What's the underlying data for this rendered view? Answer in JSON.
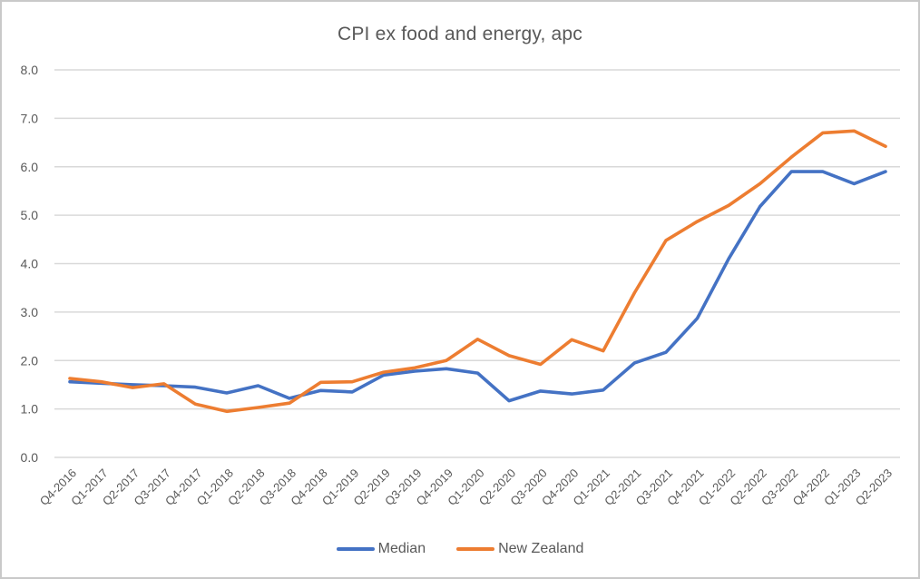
{
  "chart_data": {
    "type": "line",
    "title": "CPI ex food and energy, apc",
    "categories": [
      "Q4-2016",
      "Q1-2017",
      "Q2-2017",
      "Q3-2017",
      "Q4-2017",
      "Q1-2018",
      "Q2-2018",
      "Q3-2018",
      "Q4-2018",
      "Q1-2019",
      "Q2-2019",
      "Q3-2019",
      "Q4-2019",
      "Q1-2020",
      "Q2-2020",
      "Q3-2020",
      "Q4-2020",
      "Q1-2021",
      "Q2-2021",
      "Q3-2021",
      "Q4-2021",
      "Q1-2022",
      "Q2-2022",
      "Q3-2022",
      "Q4-2022",
      "Q1-2023",
      "Q2-2023"
    ],
    "series": [
      {
        "name": "Median",
        "color": "#4472C4",
        "values": [
          1.56,
          1.53,
          1.5,
          1.48,
          1.45,
          1.33,
          1.48,
          1.22,
          1.38,
          1.35,
          1.7,
          1.78,
          1.83,
          1.74,
          1.17,
          1.37,
          1.31,
          1.39,
          1.95,
          2.17,
          2.87,
          4.1,
          5.18,
          5.9,
          5.9,
          5.65,
          5.9
        ]
      },
      {
        "name": "New Zealand",
        "color": "#ED7D31",
        "values": [
          1.63,
          1.56,
          1.44,
          1.52,
          1.1,
          0.95,
          1.03,
          1.12,
          1.55,
          1.56,
          1.76,
          1.85,
          2.0,
          2.44,
          2.1,
          1.92,
          2.43,
          2.2,
          3.4,
          4.48,
          4.87,
          5.2,
          5.65,
          6.2,
          6.7,
          6.74,
          6.42
        ]
      }
    ],
    "xlabel": "",
    "ylabel": "",
    "ylim": [
      0.0,
      8.0
    ],
    "ytick_step": 1.0,
    "ytick_labels": [
      "0.0",
      "1.0",
      "2.0",
      "3.0",
      "4.0",
      "5.0",
      "6.0",
      "7.0",
      "8.0"
    ],
    "grid": "horizontal",
    "x_label_rotation": -45,
    "legend_position": "bottom"
  },
  "colors": {
    "grid_line": "#D9D9D9",
    "axis_text": "#595959",
    "title_text": "#595959",
    "canvas_border": "#C9C9C9",
    "background": "#FFFFFF"
  }
}
